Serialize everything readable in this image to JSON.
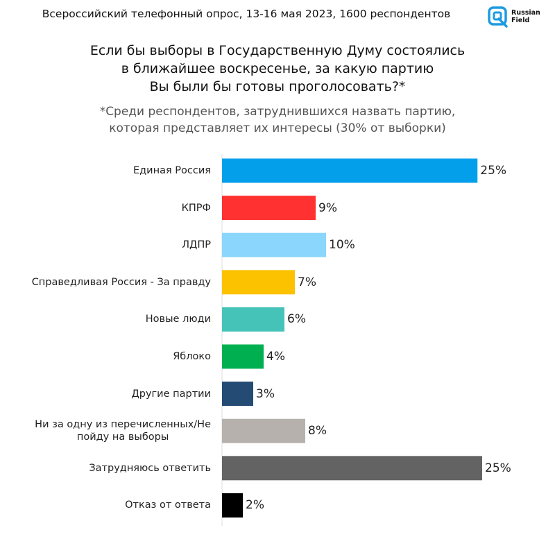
{
  "header": {
    "survey_line": "Всероссийский телефонный опрос, 13-16 мая 2023, 1600 респондентов",
    "logo_text_line1": "Russian",
    "logo_text_line2": "Field",
    "logo_color": "#1E9BE0"
  },
  "title_lines": [
    "Если бы выборы в Государственную Думу состоялись",
    "в ближайшее воскресенье, за какую партию",
    "Вы были бы готовы проголосовать?*"
  ],
  "subtitle_lines": [
    "*Среди респондентов, затруднившихся назвать партию,",
    "которая представляет их интересы (30% от выборки)"
  ],
  "chart_data": {
    "type": "bar",
    "orientation": "horizontal",
    "title": "",
    "xlabel": "",
    "ylabel": "",
    "xlim": [
      0,
      25
    ],
    "grid": false,
    "legend": "none",
    "unit": "%",
    "categories": [
      [
        "Единая Россия"
      ],
      [
        "КПРФ"
      ],
      [
        "ЛДПР"
      ],
      [
        "Справедливая Россия - За правду"
      ],
      [
        "Новые люди"
      ],
      [
        "Яблоко"
      ],
      [
        "Другие партии"
      ],
      [
        "Ни за одну из перечисленных/Не",
        "пойду на выборы"
      ],
      [
        "Затрудняюсь ответить"
      ],
      [
        "Отказ от ответа"
      ]
    ],
    "values": [
      25,
      9,
      10,
      7,
      6,
      4,
      3,
      8,
      25,
      2
    ],
    "value_labels": [
      "25%",
      "9%",
      "10%",
      "7%",
      "6%",
      "4%",
      "3%",
      "8%",
      "25%",
      "2%"
    ],
    "colors": [
      "#049FEB",
      "#FF3131",
      "#8AD6FC",
      "#FCC200",
      "#45C3B8",
      "#00B050",
      "#234B73",
      "#B6B1AD",
      "#636363",
      "#000000"
    ]
  }
}
